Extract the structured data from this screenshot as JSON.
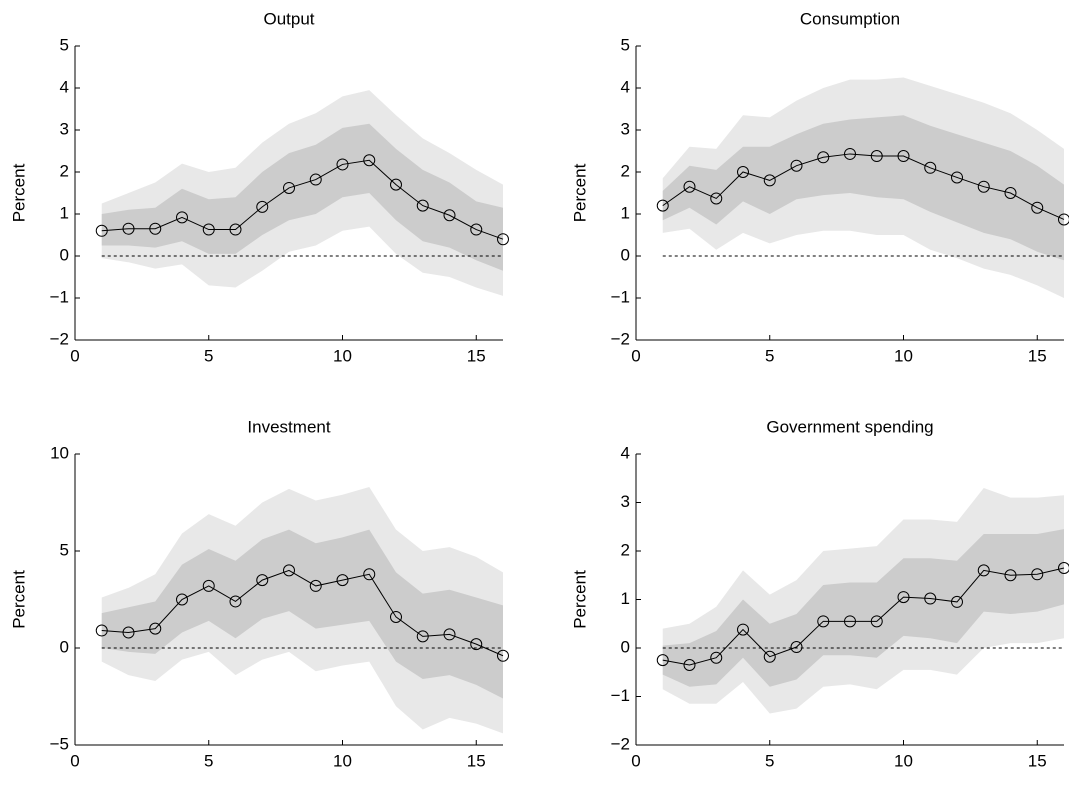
{
  "chart_data": [
    {
      "type": "line",
      "title": "Output",
      "ylabel": "Percent",
      "x": [
        1,
        2,
        3,
        4,
        5,
        6,
        7,
        8,
        9,
        10,
        11,
        12,
        13,
        14,
        15,
        16
      ],
      "xlim": [
        0,
        16
      ],
      "xticks": [
        0,
        5,
        10,
        15
      ],
      "ylim": [
        -2,
        5
      ],
      "yticks": [
        {
          "value": -2,
          "label": "−2"
        },
        {
          "value": -1,
          "label": "−1"
        },
        0,
        1,
        2,
        3,
        4,
        5
      ],
      "reference_line": 0,
      "series": [
        {
          "color": "#000000",
          "values": [
            0.6,
            0.65,
            0.65,
            0.92,
            0.63,
            0.63,
            1.17,
            1.62,
            1.82,
            2.18,
            2.28,
            1.7,
            1.2,
            0.97,
            0.63,
            0.4
          ]
        }
      ],
      "bands": [
        {
          "color": "#e8e8e8",
          "upper": [
            1.25,
            1.5,
            1.75,
            2.2,
            2.0,
            2.1,
            2.7,
            3.15,
            3.4,
            3.8,
            3.95,
            3.35,
            2.8,
            2.45,
            2.05,
            1.7
          ],
          "lower": [
            -0.05,
            -0.15,
            -0.3,
            -0.2,
            -0.7,
            -0.75,
            -0.35,
            0.1,
            0.25,
            0.6,
            0.7,
            0.05,
            -0.4,
            -0.5,
            -0.75,
            -0.95
          ]
        },
        {
          "color": "#cccccc",
          "upper": [
            1.0,
            1.1,
            1.15,
            1.6,
            1.35,
            1.4,
            2.0,
            2.45,
            2.65,
            3.05,
            3.15,
            2.55,
            2.05,
            1.75,
            1.3,
            1.15
          ],
          "lower": [
            0.25,
            0.25,
            0.2,
            0.35,
            0.05,
            0.05,
            0.5,
            0.85,
            1.0,
            1.4,
            1.5,
            0.85,
            0.35,
            0.2,
            -0.1,
            -0.35
          ]
        }
      ]
    },
    {
      "type": "line",
      "title": "Consumption",
      "ylabel": "Percent",
      "x": [
        1,
        2,
        3,
        4,
        5,
        6,
        7,
        8,
        9,
        10,
        11,
        12,
        13,
        14,
        15,
        16
      ],
      "xlim": [
        0,
        16
      ],
      "xticks": [
        0,
        5,
        10,
        15
      ],
      "ylim": [
        -2,
        5
      ],
      "yticks": [
        {
          "value": -2,
          "label": "−2"
        },
        {
          "value": -1,
          "label": "−1"
        },
        0,
        1,
        2,
        3,
        4,
        5
      ],
      "reference_line": 0,
      "series": [
        {
          "color": "#000000",
          "values": [
            1.2,
            1.65,
            1.37,
            2.0,
            1.8,
            2.15,
            2.35,
            2.43,
            2.38,
            2.38,
            2.1,
            1.87,
            1.65,
            1.5,
            1.15,
            0.87
          ]
        }
      ],
      "bands": [
        {
          "color": "#e8e8e8",
          "upper": [
            1.85,
            2.6,
            2.55,
            3.35,
            3.3,
            3.7,
            4.0,
            4.2,
            4.2,
            4.25,
            4.05,
            3.85,
            3.65,
            3.4,
            3.0,
            2.55
          ],
          "lower": [
            0.55,
            0.65,
            0.15,
            0.55,
            0.3,
            0.5,
            0.6,
            0.6,
            0.5,
            0.5,
            0.15,
            -0.05,
            -0.3,
            -0.45,
            -0.7,
            -1.0
          ]
        },
        {
          "color": "#cccccc",
          "upper": [
            1.55,
            2.15,
            2.05,
            2.6,
            2.6,
            2.9,
            3.15,
            3.25,
            3.3,
            3.35,
            3.1,
            2.9,
            2.7,
            2.5,
            2.15,
            1.7
          ],
          "lower": [
            0.85,
            1.15,
            0.75,
            1.3,
            1.0,
            1.35,
            1.45,
            1.5,
            1.4,
            1.35,
            1.05,
            0.8,
            0.55,
            0.4,
            0.1,
            -0.1
          ]
        }
      ]
    },
    {
      "type": "line",
      "title": "Investment",
      "ylabel": "Percent",
      "x": [
        1,
        2,
        3,
        4,
        5,
        6,
        7,
        8,
        9,
        10,
        11,
        12,
        13,
        14,
        15,
        16
      ],
      "xlim": [
        0,
        16
      ],
      "xticks": [
        0,
        5,
        10,
        15
      ],
      "ylim": [
        -5,
        10
      ],
      "yticks": [
        {
          "value": -5,
          "label": "−5"
        },
        0,
        5,
        10
      ],
      "reference_line": 0,
      "series": [
        {
          "color": "#000000",
          "values": [
            0.9,
            0.8,
            1.0,
            2.5,
            3.2,
            2.4,
            3.5,
            4.0,
            3.2,
            3.5,
            3.8,
            1.6,
            0.6,
            0.7,
            0.2,
            -0.4
          ]
        }
      ],
      "bands": [
        {
          "color": "#e8e8e8",
          "upper": [
            2.6,
            3.1,
            3.8,
            5.9,
            6.9,
            6.3,
            7.5,
            8.2,
            7.6,
            7.9,
            8.3,
            6.1,
            5.0,
            5.2,
            4.7,
            3.9
          ],
          "lower": [
            -0.7,
            -1.4,
            -1.7,
            -0.6,
            -0.2,
            -1.4,
            -0.6,
            -0.2,
            -1.2,
            -0.9,
            -0.7,
            -3.0,
            -4.2,
            -3.6,
            -3.9,
            -4.4
          ]
        },
        {
          "color": "#cccccc",
          "upper": [
            1.8,
            2.1,
            2.4,
            4.3,
            5.1,
            4.5,
            5.6,
            6.1,
            5.4,
            5.7,
            6.1,
            3.9,
            2.8,
            3.0,
            2.6,
            2.2
          ],
          "lower": [
            0.0,
            -0.2,
            -0.3,
            0.8,
            1.4,
            0.5,
            1.5,
            1.9,
            1.0,
            1.2,
            1.4,
            -0.7,
            -1.6,
            -1.4,
            -1.9,
            -2.6
          ]
        }
      ]
    },
    {
      "type": "line",
      "title": "Government spending",
      "ylabel": "Percent",
      "x": [
        1,
        2,
        3,
        4,
        5,
        6,
        7,
        8,
        9,
        10,
        11,
        12,
        13,
        14,
        15,
        16
      ],
      "xlim": [
        0,
        16
      ],
      "xticks": [
        0,
        5,
        10,
        15
      ],
      "ylim": [
        -2,
        4
      ],
      "yticks": [
        {
          "value": -2,
          "label": "−2"
        },
        {
          "value": -1,
          "label": "−1"
        },
        0,
        1,
        2,
        3,
        4
      ],
      "reference_line": 0,
      "series": [
        {
          "color": "#000000",
          "values": [
            -0.25,
            -0.35,
            -0.2,
            0.38,
            -0.18,
            0.02,
            0.55,
            0.55,
            0.55,
            1.05,
            1.02,
            0.95,
            1.6,
            1.5,
            1.52,
            1.65
          ]
        }
      ],
      "bands": [
        {
          "color": "#e8e8e8",
          "upper": [
            0.4,
            0.5,
            0.85,
            1.6,
            1.1,
            1.4,
            2.0,
            2.05,
            2.1,
            2.65,
            2.65,
            2.6,
            3.3,
            3.1,
            3.1,
            3.15
          ],
          "lower": [
            -0.85,
            -1.15,
            -1.15,
            -0.7,
            -1.35,
            -1.25,
            -0.8,
            -0.75,
            -0.85,
            -0.45,
            -0.45,
            -0.55,
            0.0,
            0.1,
            0.1,
            0.2
          ]
        },
        {
          "color": "#cccccc",
          "upper": [
            0.05,
            0.1,
            0.35,
            1.0,
            0.5,
            0.7,
            1.3,
            1.35,
            1.35,
            1.85,
            1.85,
            1.8,
            2.35,
            2.35,
            2.35,
            2.45
          ],
          "lower": [
            -0.55,
            -0.8,
            -0.75,
            -0.2,
            -0.8,
            -0.65,
            -0.15,
            -0.15,
            -0.2,
            0.25,
            0.2,
            0.1,
            0.75,
            0.7,
            0.75,
            0.9
          ]
        }
      ]
    }
  ]
}
